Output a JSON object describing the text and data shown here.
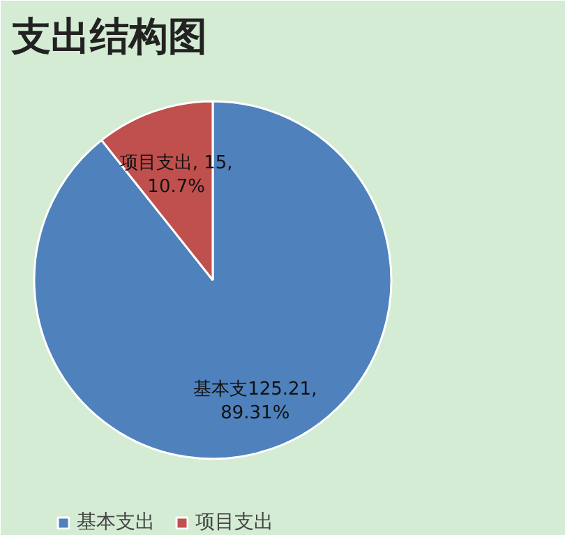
{
  "chart_data": {
    "type": "pie",
    "title": "支出结构图",
    "categories": [
      "基本支出",
      "项目支出"
    ],
    "values": [
      125.21,
      15
    ],
    "colors": [
      "#4f81bd",
      "#c0504d"
    ],
    "value_labels": [
      "基本支125.21,\n89.31%",
      "项目支出, 15,\n10.7%"
    ],
    "legend": "bottom"
  }
}
